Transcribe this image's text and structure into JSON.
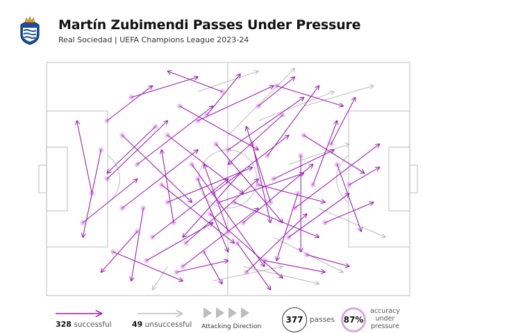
{
  "header": {
    "title": "Martín Zubimendi Passes Under Pressure",
    "subtitle": "Real Sociedad | UEFA Champions League 2023-24"
  },
  "colors": {
    "successful": "#9b1fb3",
    "unsuccessful": "#bdbdbd",
    "pitch_line": "#c8c8c8",
    "accuracy_ring": "#d7a8e0"
  },
  "legend": {
    "successful_count": "328",
    "successful_label": "successful",
    "unsuccessful_count": "49",
    "unsuccessful_label": "unsuccessful",
    "direction_label": "Attacking Direction",
    "passes_count": "377",
    "passes_label": "passes",
    "accuracy_value": "87%",
    "accuracy_label_1": "accuracy",
    "accuracy_label_2": "under",
    "accuracy_label_3": "pressure"
  },
  "chart_data": {
    "type": "pass-map",
    "total_passes": 377,
    "successful": 328,
    "unsuccessful": 49,
    "accuracy_pct": 87,
    "attacking_direction": "left-to-right",
    "pitch": {
      "x_range": [
        0,
        120
      ],
      "y_range": [
        0,
        80
      ]
    },
    "passes_successful": [
      {
        "x1": 20,
        "y1": 40,
        "x2": 40,
        "y2": 20
      },
      {
        "x1": 25,
        "y1": 50,
        "x2": 50,
        "y2": 30
      },
      {
        "x1": 30,
        "y1": 35,
        "x2": 55,
        "y2": 15
      },
      {
        "x1": 35,
        "y1": 60,
        "x2": 60,
        "y2": 40
      },
      {
        "x1": 40,
        "y1": 25,
        "x2": 65,
        "y2": 45
      },
      {
        "x1": 45,
        "y1": 70,
        "x2": 70,
        "y2": 50
      },
      {
        "x1": 50,
        "y1": 20,
        "x2": 75,
        "y2": 8
      },
      {
        "x1": 55,
        "y1": 45,
        "x2": 80,
        "y2": 25
      },
      {
        "x1": 60,
        "y1": 30,
        "x2": 85,
        "y2": 12
      },
      {
        "x1": 65,
        "y1": 55,
        "x2": 88,
        "y2": 35
      },
      {
        "x1": 70,
        "y1": 15,
        "x2": 82,
        "y2": 5
      },
      {
        "x1": 75,
        "y1": 40,
        "x2": 95,
        "y2": 30
      },
      {
        "x1": 80,
        "y1": 60,
        "x2": 100,
        "y2": 45
      },
      {
        "x1": 85,
        "y1": 25,
        "x2": 105,
        "y2": 38
      },
      {
        "x1": 15,
        "y1": 45,
        "x2": 10,
        "y2": 20
      },
      {
        "x1": 18,
        "y1": 30,
        "x2": 12,
        "y2": 60
      },
      {
        "x1": 22,
        "y1": 65,
        "x2": 45,
        "y2": 75
      },
      {
        "x1": 28,
        "y1": 12,
        "x2": 50,
        "y2": 5
      },
      {
        "x1": 32,
        "y1": 50,
        "x2": 28,
        "y2": 75
      },
      {
        "x1": 38,
        "y1": 42,
        "x2": 62,
        "y2": 62
      },
      {
        "x1": 42,
        "y1": 55,
        "x2": 38,
        "y2": 30
      },
      {
        "x1": 48,
        "y1": 35,
        "x2": 72,
        "y2": 70
      },
      {
        "x1": 52,
        "y1": 65,
        "x2": 58,
        "y2": 76
      },
      {
        "x1": 58,
        "y1": 10,
        "x2": 40,
        "y2": 3
      },
      {
        "x1": 62,
        "y1": 48,
        "x2": 90,
        "y2": 60
      },
      {
        "x1": 68,
        "y1": 28,
        "x2": 74,
        "y2": 55
      },
      {
        "x1": 72,
        "y1": 68,
        "x2": 92,
        "y2": 72
      },
      {
        "x1": 78,
        "y1": 18,
        "x2": 60,
        "y2": 35
      },
      {
        "x1": 82,
        "y1": 50,
        "x2": 110,
        "y2": 28
      },
      {
        "x1": 88,
        "y1": 42,
        "x2": 96,
        "y2": 20
      },
      {
        "x1": 92,
        "y1": 55,
        "x2": 108,
        "y2": 48
      },
      {
        "x1": 96,
        "y1": 35,
        "x2": 104,
        "y2": 58
      },
      {
        "x1": 100,
        "y1": 42,
        "x2": 110,
        "y2": 36
      },
      {
        "x1": 25,
        "y1": 25,
        "x2": 48,
        "y2": 48
      },
      {
        "x1": 33,
        "y1": 68,
        "x2": 55,
        "y2": 55
      },
      {
        "x1": 44,
        "y1": 15,
        "x2": 70,
        "y2": 30
      },
      {
        "x1": 54,
        "y1": 52,
        "x2": 78,
        "y2": 74
      },
      {
        "x1": 64,
        "y1": 38,
        "x2": 45,
        "y2": 60
      },
      {
        "x1": 74,
        "y1": 48,
        "x2": 66,
        "y2": 22
      },
      {
        "x1": 84,
        "y1": 32,
        "x2": 84,
        "y2": 65
      },
      {
        "x1": 12,
        "y1": 55,
        "x2": 30,
        "y2": 40
      },
      {
        "x1": 36,
        "y1": 22,
        "x2": 20,
        "y2": 38
      },
      {
        "x1": 46,
        "y1": 62,
        "x2": 70,
        "y2": 40
      },
      {
        "x1": 56,
        "y1": 28,
        "x2": 78,
        "y2": 55
      },
      {
        "x1": 66,
        "y1": 72,
        "x2": 86,
        "y2": 52
      },
      {
        "x1": 76,
        "y1": 8,
        "x2": 98,
        "y2": 15
      },
      {
        "x1": 86,
        "y1": 66,
        "x2": 100,
        "y2": 70
      },
      {
        "x1": 94,
        "y1": 28,
        "x2": 102,
        "y2": 12
      },
      {
        "x1": 40,
        "y1": 48,
        "x2": 68,
        "y2": 36
      },
      {
        "x1": 50,
        "y1": 40,
        "x2": 60,
        "y2": 65
      },
      {
        "x1": 60,
        "y1": 58,
        "x2": 52,
        "y2": 35
      },
      {
        "x1": 70,
        "y1": 42,
        "x2": 92,
        "y2": 48
      },
      {
        "x1": 30,
        "y1": 58,
        "x2": 18,
        "y2": 72
      },
      {
        "x1": 20,
        "y1": 20,
        "x2": 35,
        "y2": 8
      },
      {
        "x1": 53,
        "y1": 18,
        "x2": 64,
        "y2": 4
      },
      {
        "x1": 63,
        "y1": 62,
        "x2": 74,
        "y2": 78
      },
      {
        "x1": 73,
        "y1": 32,
        "x2": 90,
        "y2": 8
      },
      {
        "x1": 83,
        "y1": 45,
        "x2": 76,
        "y2": 68
      },
      {
        "x1": 43,
        "y1": 72,
        "x2": 60,
        "y2": 68
      },
      {
        "x1": 57,
        "y1": 48,
        "x2": 85,
        "y2": 38
      }
    ],
    "passes_unsuccessful": [
      {
        "x1": 70,
        "y1": 20,
        "x2": 95,
        "y2": 10
      },
      {
        "x1": 80,
        "y1": 35,
        "x2": 100,
        "y2": 28
      },
      {
        "x1": 65,
        "y1": 70,
        "x2": 90,
        "y2": 76
      },
      {
        "x1": 50,
        "y1": 10,
        "x2": 70,
        "y2": 3
      },
      {
        "x1": 75,
        "y1": 60,
        "x2": 98,
        "y2": 72
      },
      {
        "x1": 85,
        "y1": 15,
        "x2": 108,
        "y2": 8
      },
      {
        "x1": 40,
        "y1": 70,
        "x2": 35,
        "y2": 78
      },
      {
        "x1": 90,
        "y1": 50,
        "x2": 112,
        "y2": 60
      },
      {
        "x1": 60,
        "y1": 25,
        "x2": 82,
        "y2": 2
      },
      {
        "x1": 55,
        "y1": 75,
        "x2": 78,
        "y2": 70
      }
    ]
  }
}
